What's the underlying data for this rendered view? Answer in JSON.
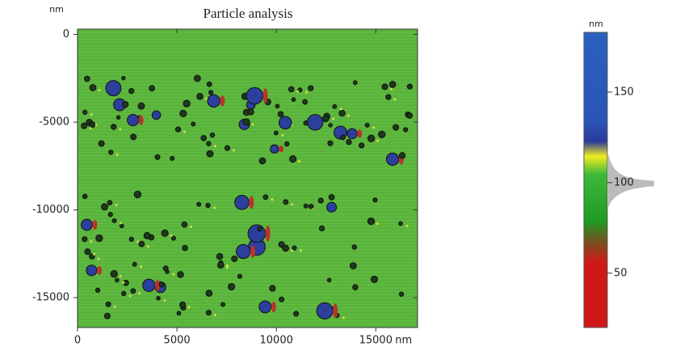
{
  "chart_data": {
    "type": "image",
    "title": "Particle analysis",
    "x_unit": "nm",
    "y_unit": "nm",
    "xlim": [
      0,
      17100
    ],
    "xticks": [
      0,
      5000,
      10000,
      15000
    ],
    "ylim": [
      -16700,
      300
    ],
    "yticks": [
      0,
      -5000,
      -10000,
      -15000
    ],
    "colorbar": {
      "unit": "nm",
      "lim": [
        20,
        183
      ],
      "ticks": [
        50,
        100,
        150
      ]
    }
  }
}
